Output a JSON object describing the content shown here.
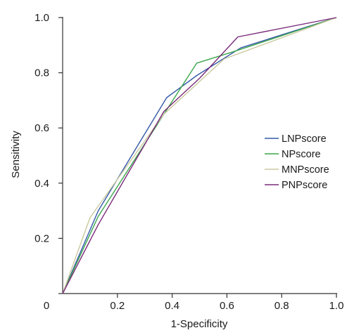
{
  "chart_data": {
    "type": "line",
    "title": "",
    "xlabel": "1-Specificity",
    "ylabel": "Sensitivity",
    "xlim": [
      0,
      1
    ],
    "ylim": [
      0,
      1
    ],
    "x_ticks": [
      {
        "value": 0,
        "label": "0"
      },
      {
        "value": 0.2,
        "label": "0.2"
      },
      {
        "value": 0.4,
        "label": "0.4"
      },
      {
        "value": 0.6,
        "label": "0.6"
      },
      {
        "value": 0.8,
        "label": "0.8"
      },
      {
        "value": 1.0,
        "label": "1.0"
      }
    ],
    "y_ticks": [
      {
        "value": 0.2,
        "label": "0.2"
      },
      {
        "value": 0.4,
        "label": "0.4"
      },
      {
        "value": 0.6,
        "label": "0.6"
      },
      {
        "value": 0.8,
        "label": "0.8"
      },
      {
        "value": 1.0,
        "label": "1.0"
      }
    ],
    "grid": false,
    "legend_position": "right",
    "series": [
      {
        "name": "LNPscore",
        "color": "#3558a8",
        "points": [
          [
            0,
            0
          ],
          [
            0.13,
            0.3
          ],
          [
            0.38,
            0.71
          ],
          [
            0.49,
            0.79
          ],
          [
            0.65,
            0.89
          ],
          [
            1.0,
            1.0
          ]
        ]
      },
      {
        "name": "NPscore",
        "color": "#3aa64a",
        "points": [
          [
            0,
            0
          ],
          [
            0.13,
            0.28
          ],
          [
            0.37,
            0.65
          ],
          [
            0.49,
            0.835
          ],
          [
            0.62,
            0.875
          ],
          [
            1.0,
            1.0
          ]
        ]
      },
      {
        "name": "MNPscore",
        "color": "#c9c9a0",
        "points": [
          [
            0,
            0
          ],
          [
            0.1,
            0.275
          ],
          [
            0.37,
            0.65
          ],
          [
            0.59,
            0.85
          ],
          [
            1.0,
            1.0
          ]
        ]
      },
      {
        "name": "PNPscore",
        "color": "#7a2a7a",
        "points": [
          [
            0,
            0
          ],
          [
            0.13,
            0.25
          ],
          [
            0.37,
            0.66
          ],
          [
            0.5,
            0.78
          ],
          [
            0.64,
            0.93
          ],
          [
            1.0,
            1.0
          ]
        ]
      }
    ]
  }
}
